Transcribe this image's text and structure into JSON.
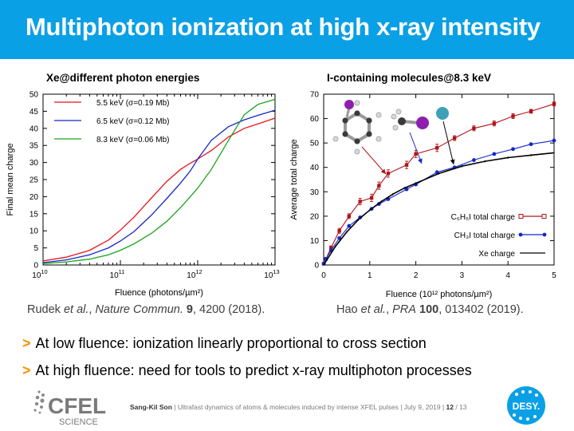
{
  "slide": {
    "title": "Multiphoton ionization at high x-ray intensity",
    "bullets": [
      "At low fluence: ionization linearly proportional to cross section",
      "At high fluence: need for tools to predict x-ray multiphoton processes"
    ],
    "citations": {
      "left": {
        "authors": "Rudek ",
        "etal": "et al.",
        "journal": "Nature Commun.",
        "volume": "9",
        "rest": ", 4200 (2018)."
      },
      "right": {
        "authors": "Hao ",
        "etal": "et al.",
        "journal": "PRA",
        "volume": "100",
        "rest": ", 013402 (2019)."
      }
    },
    "footer": {
      "author": "Sang-Kil Son",
      "text": "  |  Ultrafast dynamics of atoms & molecules induced by intense XFEL pulses  |  July 9, 2019  |  ",
      "page": "12",
      "total": " / 13"
    },
    "logos": {
      "left": "CFEL",
      "left_sub": "SCIENCE",
      "right": "DESY."
    },
    "colors": {
      "title_bar": "#0aa0e6",
      "accent": "#f39200"
    }
  },
  "chart_data": [
    {
      "type": "line",
      "title": "Xe@different photon energies",
      "xlabel": "Fluence (photons/µm²)",
      "ylabel": "Final mean charge",
      "xscale": "log",
      "xlim": [
        10000000000,
        10000000000000
      ],
      "ylim": [
        0,
        50
      ],
      "xticks": [
        {
          "base": "10",
          "exp": "10"
        },
        {
          "base": "10",
          "exp": "11"
        },
        {
          "base": "10",
          "exp": "12"
        },
        {
          "base": "10",
          "exp": "13"
        }
      ],
      "yticks": [
        0,
        5,
        10,
        15,
        20,
        25,
        30,
        35,
        40,
        45,
        50
      ],
      "legend": "top-left",
      "series": [
        {
          "name": "5.5 keV (σ=0.19 Mb)",
          "color": "#e8121c",
          "x": [
            10000000000,
            20000000000,
            40000000000,
            70000000000,
            100000000000,
            150000000000,
            250000000000,
            400000000000,
            600000000000,
            800000000000,
            1000000000000,
            1500000000000,
            2500000000000,
            4000000000000,
            6000000000000,
            10000000000000
          ],
          "y": [
            1.2,
            2.3,
            4.3,
            7.3,
            10.2,
            14,
            19.5,
            24.5,
            28,
            29.8,
            31,
            33.5,
            37.5,
            40,
            41.3,
            43
          ]
        },
        {
          "name": "6.5 keV (σ=0.12 Mb)",
          "color": "#1427c8",
          "x": [
            10000000000,
            20000000000,
            40000000000,
            70000000000,
            100000000000,
            150000000000,
            250000000000,
            400000000000,
            600000000000,
            800000000000,
            1000000000000,
            1500000000000,
            2500000000000,
            4000000000000,
            6000000000000,
            10000000000000
          ],
          "y": [
            0.7,
            1.5,
            3,
            5,
            7,
            9.8,
            14.5,
            19.5,
            24,
            27.5,
            31,
            36.5,
            40.5,
            42.5,
            43.8,
            45.3
          ]
        },
        {
          "name": "8.3 keV (σ=0.06 Mb)",
          "color": "#19a519",
          "x": [
            10000000000,
            20000000000,
            40000000000,
            70000000000,
            100000000000,
            150000000000,
            250000000000,
            400000000000,
            600000000000,
            800000000000,
            1000000000000,
            1500000000000,
            2500000000000,
            4000000000000,
            6000000000000,
            10000000000000
          ],
          "y": [
            0.4,
            0.9,
            1.7,
            3,
            4.3,
            6.2,
            9.2,
            12.8,
            16.8,
            20,
            22.5,
            28,
            36.5,
            44,
            47,
            48.5
          ]
        }
      ]
    },
    {
      "type": "line",
      "title": "I-containing molecules@8.3 keV",
      "xlabel": "Fluence (10¹² photons/µm²)",
      "ylabel": "Average total charge",
      "xlim": [
        0,
        5
      ],
      "ylim": [
        0,
        70
      ],
      "xticks": [
        0,
        1,
        2,
        3,
        4,
        5
      ],
      "yticks": [
        0,
        10,
        20,
        30,
        40,
        50,
        60,
        70
      ],
      "legend": "bottom-right",
      "series": [
        {
          "name": "C₆H₅I total charge",
          "color": "#b0141a",
          "marker": "square",
          "x": [
            0,
            0.05,
            0.16,
            0.34,
            0.55,
            0.79,
            1.04,
            1.2,
            1.4,
            1.8,
            2.0,
            2.46,
            2.84,
            3.26,
            3.7,
            4.11,
            4.5,
            5.0
          ],
          "y": [
            0.5,
            2.5,
            7,
            14,
            20,
            26,
            27.5,
            32.5,
            37.5,
            41,
            45.5,
            48,
            52,
            56,
            58,
            61,
            63,
            66
          ],
          "err": [
            0.3,
            0.5,
            0.8,
            1,
            1,
            1.3,
            1.5,
            1.5,
            1.5,
            1.5,
            1.5,
            1.5,
            1,
            1,
            1,
            1,
            0.8,
            0.8
          ]
        },
        {
          "name": "CH₃I total charge",
          "color": "#1427c8",
          "marker": "circle",
          "x": [
            0,
            0.05,
            0.16,
            0.34,
            0.55,
            0.79,
            1.04,
            1.2,
            1.4,
            1.8,
            2.0,
            2.46,
            2.84,
            3.26,
            3.7,
            4.11,
            4.5,
            5.0
          ],
          "y": [
            0.5,
            2.5,
            6,
            11,
            16,
            19.5,
            23,
            25,
            27,
            31,
            33,
            38,
            40,
            43,
            45.5,
            47.5,
            49.5,
            51
          ]
        },
        {
          "name": "Xe charge",
          "color": "#000000",
          "marker": "none",
          "x": [
            0,
            0.25,
            0.5,
            0.75,
            1.0,
            1.25,
            1.5,
            1.75,
            2.0,
            2.5,
            3.0,
            3.5,
            4.0,
            4.5,
            5.0
          ],
          "y": [
            0,
            7.5,
            13.5,
            18.5,
            22.5,
            26,
            29,
            31.5,
            33.5,
            37.5,
            40.5,
            42.5,
            44,
            45,
            46
          ]
        }
      ]
    }
  ]
}
